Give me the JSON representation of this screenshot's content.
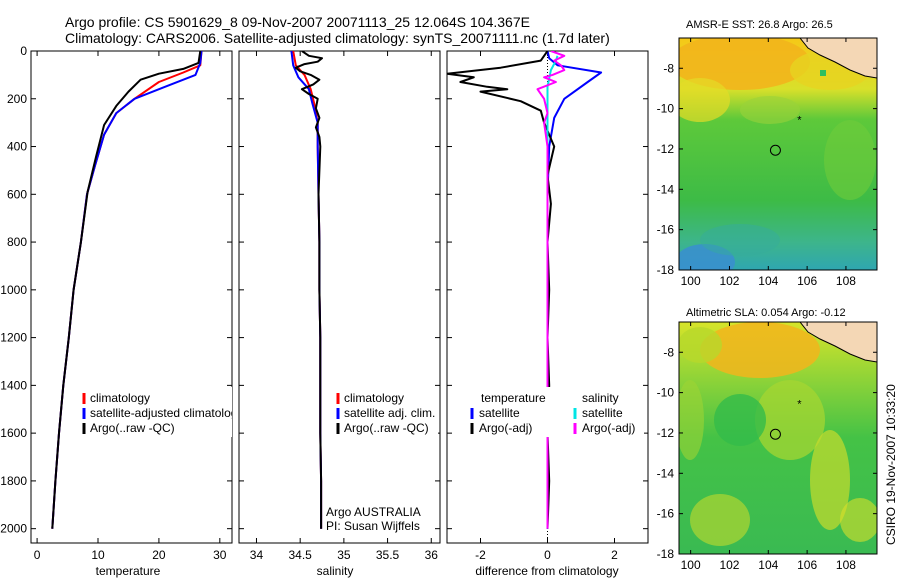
{
  "title": {
    "line1": "Argo profile: CS 5901629_8 09-Nov-2007 20071113_25 12.064S 104.367E",
    "line2": "Climatology: CARS2006. Satellite-adjusted climatology: synTS_20071111.nc (1.7d later)"
  },
  "credit": "CSIRO 19-Nov-2007 10:33:20",
  "chart_data": [
    {
      "type": "line",
      "name": "temperature-profile",
      "xlabel": "temperature",
      "ylabel": "",
      "xlim": [
        -1,
        32
      ],
      "ylim": [
        0,
        2060
      ],
      "y_inverted": true,
      "xticks": [
        "0",
        "10",
        "20",
        "30"
      ],
      "yticks": [
        "0",
        "200",
        "400",
        "600",
        "800",
        "1000",
        "1200",
        "1400",
        "1600",
        "1800",
        "2000"
      ],
      "legend": [
        "climatology",
        "satellite-adjusted climatology",
        "Argo(..raw -QC)"
      ],
      "series": [
        {
          "name": "climatology",
          "color": "#ff0000",
          "points": [
            [
              27,
              0
            ],
            [
              26.8,
              60
            ],
            [
              24,
              90
            ],
            [
              20,
              130
            ],
            [
              16,
              200
            ],
            [
              13,
              260
            ],
            [
              11,
              350
            ],
            [
              9.5,
              480
            ],
            [
              8.2,
              600
            ],
            [
              7.2,
              800
            ],
            [
              6,
              1000
            ],
            [
              5.2,
              1200
            ],
            [
              4.3,
              1400
            ],
            [
              3.6,
              1600
            ],
            [
              3,
              1800
            ],
            [
              2.5,
              2000
            ]
          ]
        },
        {
          "name": "satellite-adjusted climatology",
          "color": "#0000ff",
          "points": [
            [
              27,
              0
            ],
            [
              26.8,
              50
            ],
            [
              26,
              100
            ],
            [
              21,
              150
            ],
            [
              16,
              200
            ],
            [
              13,
              260
            ],
            [
              11,
              350
            ],
            [
              9.5,
              480
            ],
            [
              8.2,
              600
            ],
            [
              7.2,
              800
            ],
            [
              6,
              1000
            ],
            [
              5.2,
              1200
            ],
            [
              4.3,
              1400
            ],
            [
              3.6,
              1600
            ],
            [
              3,
              1800
            ],
            [
              2.5,
              2000
            ]
          ]
        },
        {
          "name": "Argo(..raw -QC)",
          "color": "#000000",
          "points": [
            [
              26.8,
              0
            ],
            [
              26.5,
              50
            ],
            [
              24,
              75
            ],
            [
              20,
              95
            ],
            [
              17,
              120
            ],
            [
              15,
              170
            ],
            [
              13,
              230
            ],
            [
              11,
              310
            ],
            [
              9.7,
              440
            ],
            [
              8.3,
              590
            ],
            [
              7.2,
              800
            ],
            [
              6,
              1000
            ],
            [
              5.2,
              1200
            ],
            [
              4.3,
              1400
            ],
            [
              3.6,
              1600
            ],
            [
              3,
              1800
            ],
            [
              2.5,
              2000
            ]
          ]
        }
      ]
    },
    {
      "type": "line",
      "name": "salinity-profile",
      "xlabel": "salinity",
      "xlim": [
        33.8,
        36.1
      ],
      "ylim": [
        0,
        2060
      ],
      "y_inverted": true,
      "xticks": [
        "34",
        "34.5",
        "35",
        "35.5",
        "36"
      ],
      "legend": [
        "climatology",
        "satellite adj. clim.",
        "Argo(..raw -QC)"
      ],
      "annotation": [
        "Argo AUSTRALIA",
        "PI: Susan Wijffels"
      ],
      "series": [
        {
          "name": "climatology",
          "color": "#ff0000",
          "points": [
            [
              34.42,
              0
            ],
            [
              34.45,
              60
            ],
            [
              34.55,
              100
            ],
            [
              34.62,
              160
            ],
            [
              34.66,
              220
            ],
            [
              34.7,
              300
            ],
            [
              34.7,
              400
            ],
            [
              34.71,
              600
            ],
            [
              34.72,
              800
            ],
            [
              34.72,
              1000
            ],
            [
              34.73,
              1200
            ],
            [
              34.73,
              1400
            ],
            [
              34.73,
              1600
            ],
            [
              34.74,
              1800
            ],
            [
              34.74,
              2000
            ]
          ]
        },
        {
          "name": "satellite adj. clim.",
          "color": "#0000ff",
          "points": [
            [
              34.4,
              0
            ],
            [
              34.42,
              60
            ],
            [
              34.48,
              110
            ],
            [
              34.6,
              160
            ],
            [
              34.64,
              220
            ],
            [
              34.7,
              300
            ],
            [
              34.7,
              400
            ],
            [
              34.71,
              600
            ],
            [
              34.72,
              800
            ],
            [
              34.72,
              1000
            ],
            [
              34.73,
              1200
            ],
            [
              34.73,
              1400
            ],
            [
              34.73,
              1600
            ],
            [
              34.74,
              1800
            ],
            [
              34.74,
              2000
            ]
          ]
        },
        {
          "name": "Argo(..raw -QC)",
          "color": "#000000",
          "points": [
            [
              34.52,
              0
            ],
            [
              34.6,
              20
            ],
            [
              34.75,
              30
            ],
            [
              34.7,
              45
            ],
            [
              34.55,
              55
            ],
            [
              34.45,
              70
            ],
            [
              34.5,
              85
            ],
            [
              34.62,
              100
            ],
            [
              34.72,
              120
            ],
            [
              34.65,
              140
            ],
            [
              34.52,
              160
            ],
            [
              34.6,
              180
            ],
            [
              34.7,
              200
            ],
            [
              34.68,
              240
            ],
            [
              34.72,
              280
            ],
            [
              34.68,
              320
            ],
            [
              34.72,
              360
            ],
            [
              34.73,
              400
            ],
            [
              34.71,
              600
            ],
            [
              34.72,
              800
            ],
            [
              34.72,
              1000
            ],
            [
              34.73,
              1200
            ],
            [
              34.73,
              1400
            ],
            [
              34.73,
              1600
            ],
            [
              34.74,
              1800
            ],
            [
              34.74,
              2000
            ]
          ]
        }
      ]
    },
    {
      "type": "line",
      "name": "difference-profile",
      "xlabel": "difference from climatology",
      "xlim": [
        -3,
        3
      ],
      "ylim": [
        0,
        2060
      ],
      "y_inverted": true,
      "xticks": [
        "-2",
        "0",
        "2"
      ],
      "legend_left_title": "temperature",
      "legend_right_title": "salinity",
      "legend": [
        "satellite",
        "Argo(-adj)",
        "satellite",
        "Argo(-adj)"
      ],
      "series": [
        {
          "name": "temperature satellite",
          "color": "#0000ff",
          "points": [
            [
              0,
              0
            ],
            [
              0.05,
              30
            ],
            [
              0.3,
              60
            ],
            [
              1.6,
              90
            ],
            [
              1.2,
              130
            ],
            [
              0.5,
              200
            ],
            [
              0.2,
              280
            ],
            [
              0.05,
              400
            ],
            [
              0,
              600
            ],
            [
              0,
              2000
            ]
          ]
        },
        {
          "name": "temperature Argo(-adj)",
          "color": "#000000",
          "points": [
            [
              0,
              0
            ],
            [
              -0.2,
              40
            ],
            [
              -1.4,
              70
            ],
            [
              -3,
              95
            ],
            [
              -2.2,
              110
            ],
            [
              -2.6,
              130
            ],
            [
              -1.8,
              150
            ],
            [
              -1.2,
              160
            ],
            [
              -2,
              170
            ],
            [
              -0.8,
              210
            ],
            [
              -0.2,
              250
            ],
            [
              -0.1,
              300
            ],
            [
              0.2,
              400
            ],
            [
              0,
              520
            ],
            [
              0.1,
              640
            ],
            [
              0,
              800
            ],
            [
              0.05,
              1000
            ],
            [
              0,
              1200
            ],
            [
              0.05,
              1400
            ],
            [
              0,
              1600
            ],
            [
              0.05,
              1800
            ],
            [
              0,
              2000
            ]
          ]
        },
        {
          "name": "salinity satellite",
          "color": "#00e5e5",
          "points": [
            [
              0.3,
              20
            ],
            [
              0.25,
              40
            ],
            [
              0.1,
              80
            ],
            [
              0,
              150
            ],
            [
              0,
              200
            ],
            [
              0,
              400
            ],
            [
              0,
              1000
            ],
            [
              0,
              2000
            ]
          ]
        },
        {
          "name": "salinity Argo(-adj)",
          "color": "#ff00ff",
          "points": [
            [
              0.1,
              0
            ],
            [
              0.5,
              20
            ],
            [
              0.2,
              40
            ],
            [
              0.4,
              60
            ],
            [
              0.5,
              80
            ],
            [
              0.15,
              100
            ],
            [
              -0.1,
              110
            ],
            [
              0.25,
              130
            ],
            [
              -0.3,
              160
            ],
            [
              -0.1,
              200
            ],
            [
              0,
              260
            ],
            [
              -0.1,
              300
            ],
            [
              0,
              400
            ],
            [
              0,
              600
            ],
            [
              0,
              800
            ],
            [
              0,
              1000
            ],
            [
              0,
              1200
            ],
            [
              0,
              1400
            ],
            [
              0,
              1600
            ],
            [
              0,
              1800
            ],
            [
              0,
              2000
            ]
          ]
        }
      ]
    },
    {
      "type": "heatmap",
      "name": "amsre-sst-map",
      "title": "AMSR-E SST: 26.8 Argo: 26.5",
      "xlim": [
        99.4,
        109.6
      ],
      "ylim": [
        -18,
        -6.5
      ],
      "xticks": [
        "100",
        "102",
        "104",
        "106",
        "108"
      ],
      "yticks": [
        "-8",
        "-10",
        "-12",
        "-14",
        "-16",
        "-18"
      ],
      "argo_position": [
        104.367,
        -12.064
      ],
      "marker": [
        105.6,
        -10.5
      ]
    },
    {
      "type": "heatmap",
      "name": "altimetric-sla-map",
      "title": "Altimetric SLA: 0.054 Argo: -0.12",
      "xlim": [
        99.4,
        109.6
      ],
      "ylim": [
        -18,
        -6.5
      ],
      "xticks": [
        "100",
        "102",
        "104",
        "106",
        "108"
      ],
      "yticks": [
        "-8",
        "-10",
        "-12",
        "-14",
        "-16",
        "-18"
      ],
      "argo_position": [
        104.367,
        -12.064
      ],
      "marker": [
        105.6,
        -10.5
      ]
    }
  ]
}
